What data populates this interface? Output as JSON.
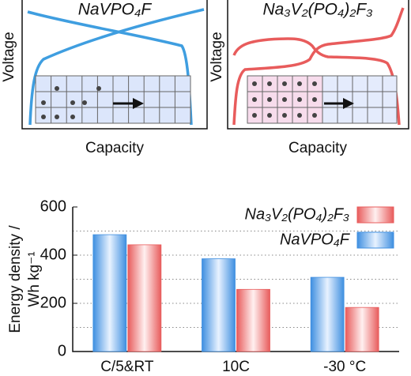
{
  "schematics": [
    {
      "title": "NaVPO₄F",
      "ylabel": "Voltage",
      "xlabel": "Capacity"
    },
    {
      "title": "Na₃V₂(PO₄)₂F₃",
      "ylabel": "Voltage",
      "xlabel": "Capacity"
    }
  ],
  "chart_data": {
    "type": "bar",
    "ylabel": [
      "Energy density /",
      "Wh kg⁻¹"
    ],
    "categories": [
      "C/5&RT",
      "10C",
      "-30 °C"
    ],
    "series": [
      {
        "name": "NaVPO₄F",
        "color": "#3f8fe0",
        "values": [
          485,
          385,
          308
        ]
      },
      {
        "name": "Na₃V₂(PO₄)₂F₃",
        "color": "#e85c5c",
        "values": [
          443,
          258,
          183
        ]
      }
    ],
    "ylim": [
      0,
      600
    ],
    "yticks": [
      0,
      200,
      400,
      600
    ],
    "yminorticks": [
      100,
      300,
      500
    ],
    "grid": true,
    "legend": "upper right"
  }
}
